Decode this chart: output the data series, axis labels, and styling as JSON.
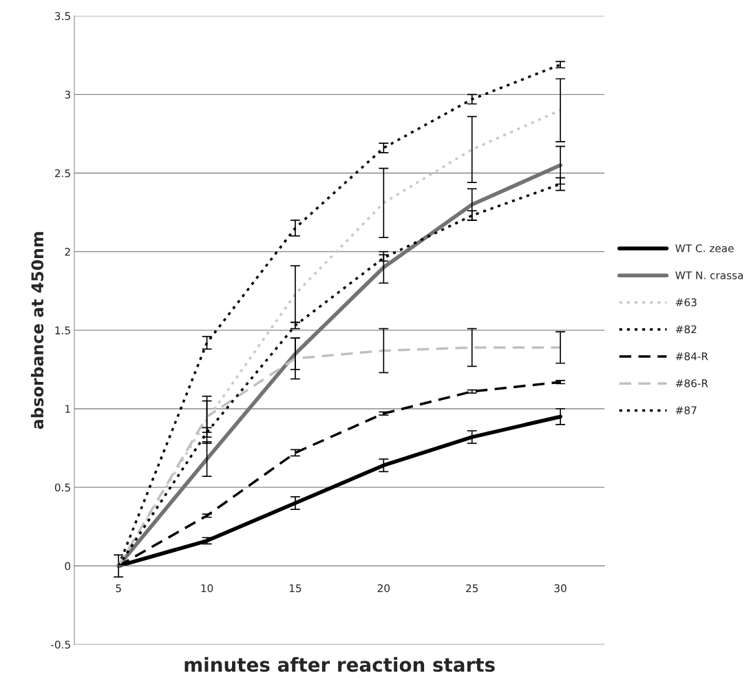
{
  "chart_data": {
    "type": "line",
    "xlabel": "minutes after reaction starts",
    "ylabel": "absorbance at 450nm",
    "categories": [
      "5",
      "10",
      "15",
      "20",
      "25",
      "30"
    ],
    "ylim": [
      -0.5,
      3.5
    ],
    "yticks": [
      -0.5,
      0,
      0.5,
      1,
      1.5,
      2,
      2.5,
      3,
      3.5
    ],
    "grid": "y",
    "legend": "right",
    "marker": "none",
    "series": [
      {
        "name": "WT C. zeae",
        "color": "#000000",
        "line_style": "solid",
        "values": [
          0,
          0.16,
          0.4,
          0.64,
          0.82,
          0.95
        ],
        "errors": [
          null,
          0.02,
          0.04,
          0.04,
          0.04,
          0.05
        ]
      },
      {
        "name": "WT N. crassa",
        "color": "#737373",
        "line_style": "solid",
        "values": [
          0,
          0.68,
          1.35,
          1.9,
          2.3,
          2.55
        ],
        "errors": [
          null,
          0.11,
          0.1,
          0.1,
          0.1,
          0.12
        ]
      },
      {
        "name": "#63",
        "color": "#c8c8c8",
        "line_style": "dotted",
        "values": [
          0,
          0.93,
          1.73,
          2.31,
          2.65,
          2.9
        ],
        "errors": [
          0.07,
          0.15,
          0.18,
          0.22,
          0.21,
          0.2
        ]
      },
      {
        "name": "#82",
        "color": "#000000",
        "line_style": "dotted",
        "values": [
          0,
          1.42,
          2.15,
          2.66,
          2.97,
          3.19
        ],
        "errors": [
          null,
          0.04,
          0.05,
          0.03,
          0.03,
          0.02
        ]
      },
      {
        "name": "#84-R",
        "color": "#000000",
        "line_style": "dashed",
        "values": [
          0,
          0.32,
          0.72,
          0.97,
          1.11,
          1.17
        ],
        "errors": [
          null,
          0.01,
          0.02,
          0.01,
          0.01,
          0.01
        ]
      },
      {
        "name": "#86-R",
        "color": "#c0c0c0",
        "line_style": "dashed",
        "values": [
          0,
          0.95,
          1.32,
          1.37,
          1.39,
          1.39
        ],
        "errors": [
          null,
          0.1,
          0.13,
          0.14,
          0.12,
          0.1
        ]
      },
      {
        "name": "#87",
        "color": "#000000",
        "line_style": "dotted",
        "values": [
          0,
          0.85,
          1.53,
          1.96,
          2.23,
          2.43
        ],
        "errors": [
          null,
          0.03,
          0.02,
          0.02,
          0.03,
          0.04
        ]
      }
    ]
  }
}
